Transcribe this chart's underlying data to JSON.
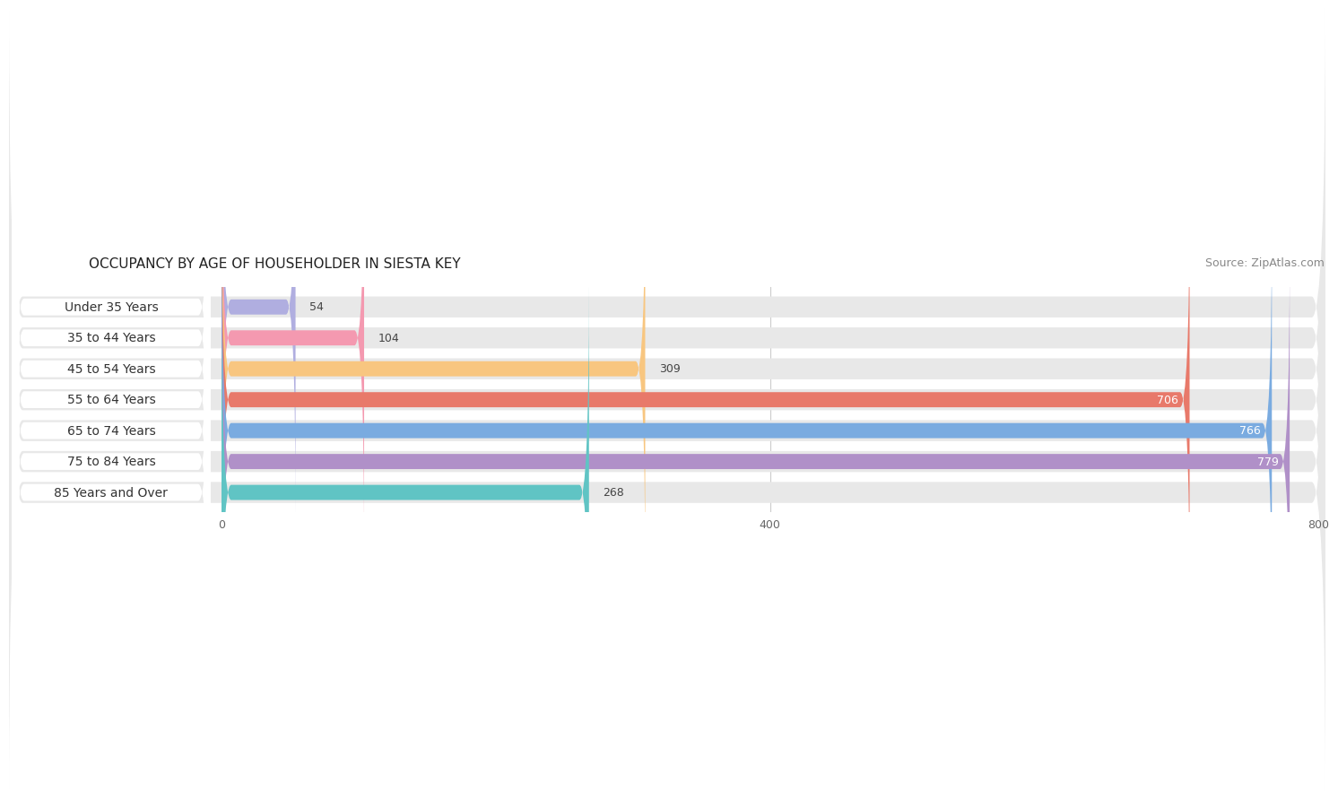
{
  "title": "OCCUPANCY BY AGE OF HOUSEHOLDER IN SIESTA KEY",
  "source": "Source: ZipAtlas.com",
  "categories": [
    "Under 35 Years",
    "35 to 44 Years",
    "45 to 54 Years",
    "55 to 64 Years",
    "65 to 74 Years",
    "75 to 84 Years",
    "85 Years and Over"
  ],
  "values": [
    54,
    104,
    309,
    706,
    766,
    779,
    268
  ],
  "bar_colors": [
    "#b0aee0",
    "#f499b0",
    "#f8c680",
    "#e8796a",
    "#7aabe0",
    "#b090c8",
    "#60c4c4"
  ],
  "xlim": [
    0,
    800
  ],
  "xticks": [
    0,
    400,
    800
  ],
  "title_fontsize": 11,
  "source_fontsize": 9,
  "label_fontsize": 10,
  "value_fontsize": 9,
  "bar_height": 0.68,
  "row_bg_color": "#e8e8e8",
  "bar_bg_color": "#f5f5f5",
  "white_label_bg": "#ffffff",
  "background_color": "#ffffff"
}
